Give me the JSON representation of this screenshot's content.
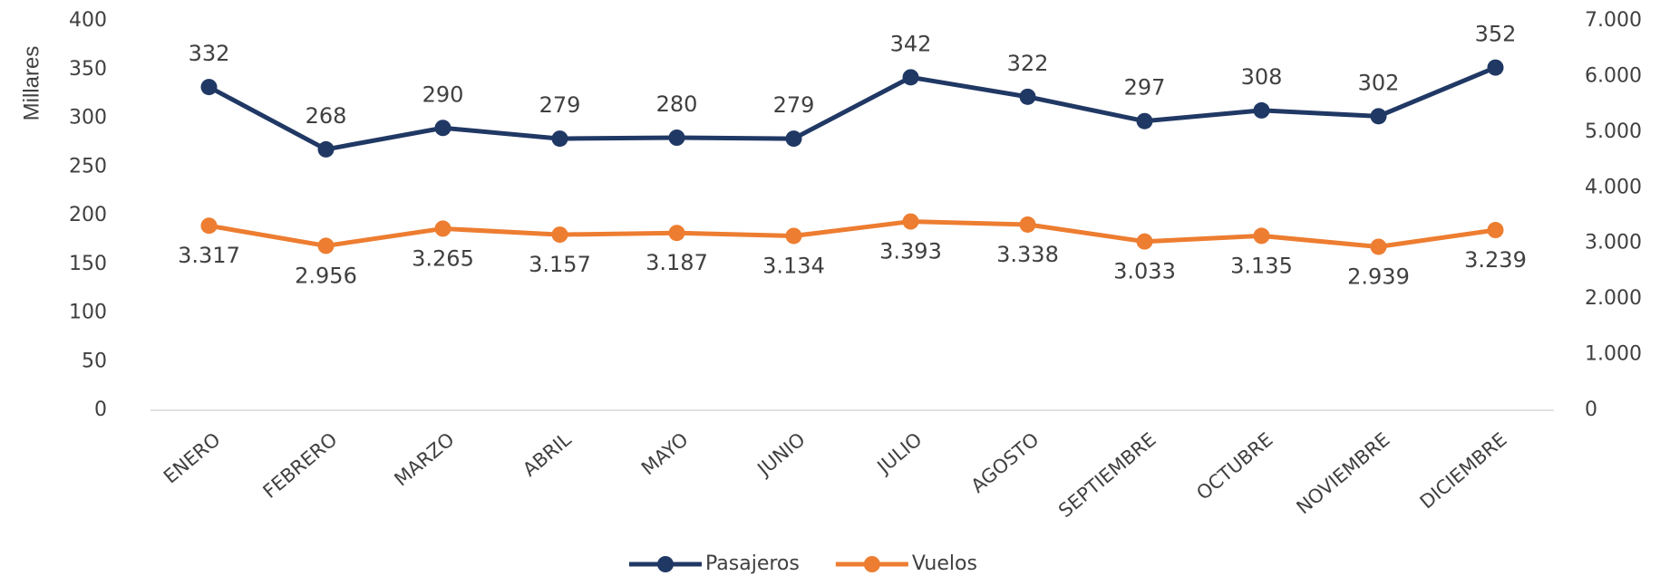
{
  "chart_data": {
    "type": "line",
    "y_label": "Millares",
    "categories": [
      "ENERO",
      "FEBRERO",
      "MARZO",
      "ABRIL",
      "MAYO",
      "JUNIO",
      "JULIO",
      "AGOSTO",
      "SEPTIEMBRE",
      "OCTUBRE",
      "NOVIEMBRE",
      "DICIEMBRE"
    ],
    "series": [
      {
        "name": "Pasajeros",
        "color": "#203864",
        "values": [
          332,
          268,
          290,
          279,
          280,
          279,
          342,
          322,
          297,
          308,
          302,
          352
        ]
      },
      {
        "name": "Vuelos",
        "color": "#ed7d31",
        "axis": "y2",
        "values": [
          3317,
          2956,
          3265,
          3157,
          3187,
          3134,
          3393,
          3338,
          3033,
          3135,
          2939,
          3239
        ],
        "value_labels": [
          "3.317",
          "2.956",
          "3.265",
          "3.157",
          "3.187",
          "3.134",
          "3.393",
          "3.338",
          "3.033",
          "3.135",
          "2.939",
          "3.239"
        ]
      }
    ],
    "ylim": [
      0,
      400
    ],
    "yticks": [
      0,
      50,
      100,
      150,
      200,
      250,
      300,
      350,
      400
    ],
    "y2lim": [
      0,
      7000
    ],
    "y2ticks": [
      0,
      {
        "value": 1000,
        "label": "1.000"
      },
      {
        "value": 2000,
        "label": "2.000"
      },
      {
        "value": 3000,
        "label": "3.000"
      },
      {
        "value": 4000,
        "label": "4.000"
      },
      {
        "value": 5000,
        "label": "5.000"
      },
      {
        "value": 6000,
        "label": "6.000"
      },
      {
        "value": 7000,
        "label": "7.000"
      }
    ],
    "legend": "bottom"
  }
}
